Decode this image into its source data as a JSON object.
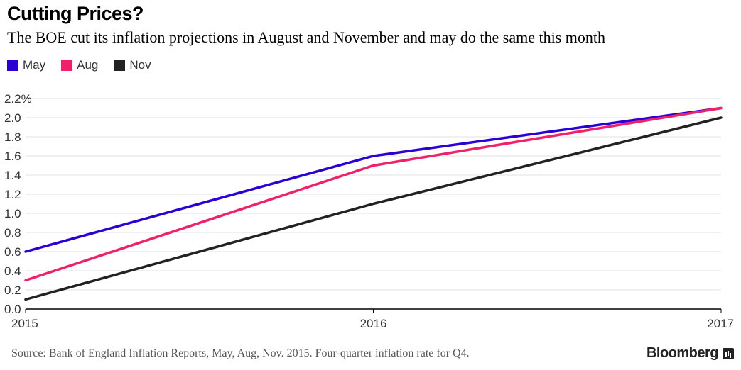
{
  "chart_data": {
    "type": "line",
    "title": "Cutting Prices?",
    "subtitle": "The BOE cut its inflation projections in August and November and may do the same this month",
    "x": [
      "2015",
      "2016",
      "2017"
    ],
    "series": [
      {
        "name": "May",
        "color": "#2b00d4",
        "values": [
          0.6,
          1.6,
          2.1
        ]
      },
      {
        "name": "Aug",
        "color": "#f0206a",
        "values": [
          0.3,
          1.5,
          2.1
        ]
      },
      {
        "name": "Nov",
        "color": "#222222",
        "values": [
          0.1,
          1.1,
          2.0
        ]
      }
    ],
    "yticks": [
      "0.0",
      "0.2",
      "0.4",
      "0.6",
      "0.8",
      "1.0",
      "1.2",
      "1.4",
      "1.6",
      "1.8",
      "2.0",
      "2.2%"
    ],
    "ylim": [
      0,
      2.2
    ],
    "xlabel": "",
    "ylabel": "",
    "grid": true,
    "legend_position": "top-left",
    "source": "Source: Bank of England Inflation Reports, May, Aug, Nov. 2015. Four-quarter inflation rate for Q4."
  },
  "brand": {
    "name": "Bloomberg",
    "icon": "bar-chart-icon"
  }
}
